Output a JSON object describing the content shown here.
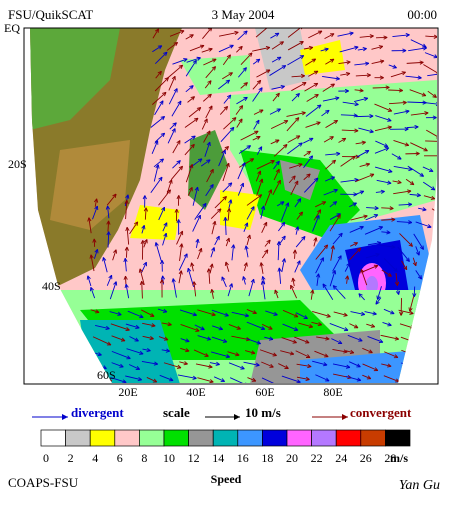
{
  "header": {
    "left": "FSU/QuikSCAT",
    "date": "3 May 2004",
    "time": "00:00"
  },
  "map": {
    "lat_labels": [
      "EQ",
      "20S",
      "40S",
      "60S"
    ],
    "lon_labels": [
      "20E",
      "40E",
      "60E",
      "80E"
    ]
  },
  "legend": {
    "divergent": "divergent",
    "scale": "scale",
    "scale_value": "10 m/s",
    "convergent": "convergent"
  },
  "colorbar": {
    "ticks": [
      0,
      2,
      4,
      6,
      8,
      10,
      12,
      14,
      16,
      18,
      20,
      22,
      24,
      26,
      28
    ],
    "colors": [
      "#ffffff",
      "#c8c8c8",
      "#ffff00",
      "#ffc8c8",
      "#96ff96",
      "#00e000",
      "#969696",
      "#00b4b4",
      "#3c96ff",
      "#0000dc",
      "#ff64ff",
      "#b478ff",
      "#ff0000",
      "#c83c00",
      "#000000"
    ],
    "unit": "m/s",
    "label": "Speed"
  },
  "footer": {
    "left": "COAPS-FSU",
    "signature": "Yan Gu"
  }
}
